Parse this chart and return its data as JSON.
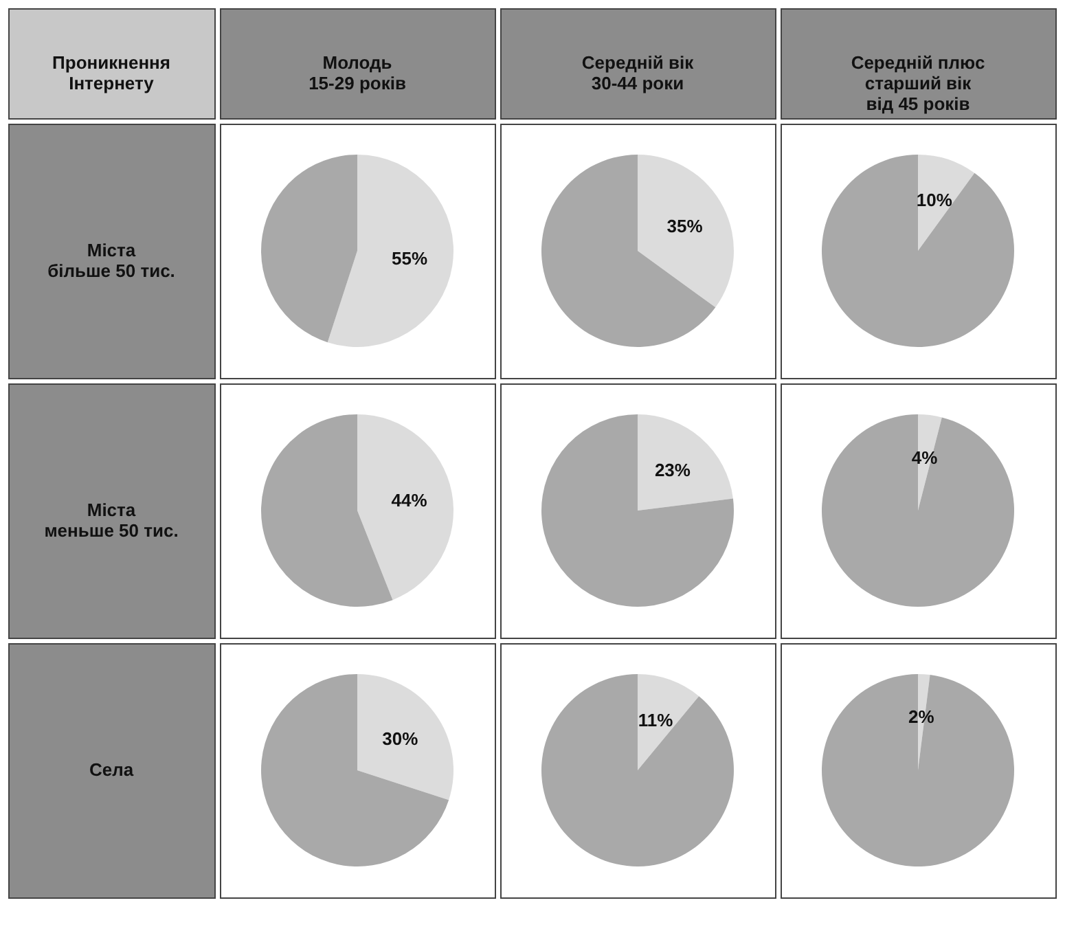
{
  "chart_data": [
    {
      "type": "other",
      "title": "Проникнення\nІнтернету",
      "annotations": [
        "Молодь\n15-29 років",
        "Середній вік\n30-44 роки",
        "Середній плюс\nстарший вік\nвід 45 років",
        "Міста\nбільше 50 тис.",
        "Міста\nменьше 50 тис.",
        "Села"
      ]
    },
    {
      "type": "pie",
      "categories": [
        null,
        null
      ],
      "values": [
        55,
        45
      ],
      "colors": [
        "#dcdcdc",
        "#a9a9a9"
      ],
      "value_labels": [
        "55%",
        null
      ]
    },
    {
      "type": "pie",
      "categories": [
        null,
        null
      ],
      "values": [
        35,
        65
      ],
      "colors": [
        "#dcdcdc",
        "#a9a9a9"
      ],
      "value_labels": [
        "35%",
        null
      ]
    },
    {
      "type": "pie",
      "categories": [
        null,
        null
      ],
      "values": [
        10,
        90
      ],
      "colors": [
        "#dcdcdc",
        "#a9a9a9"
      ],
      "value_labels": [
        "10%",
        null
      ]
    },
    {
      "type": "pie",
      "categories": [
        null,
        null
      ],
      "values": [
        44,
        56
      ],
      "colors": [
        "#dcdcdc",
        "#a9a9a9"
      ],
      "value_labels": [
        "44%",
        null
      ]
    },
    {
      "type": "pie",
      "categories": [
        null,
        null
      ],
      "values": [
        23,
        77
      ],
      "colors": [
        "#dcdcdc",
        "#a9a9a9"
      ],
      "value_labels": [
        "23%",
        null
      ]
    },
    {
      "type": "pie",
      "categories": [
        null,
        null
      ],
      "values": [
        4,
        96
      ],
      "colors": [
        "#dcdcdc",
        "#a9a9a9"
      ],
      "value_labels": [
        "4%",
        null
      ]
    },
    {
      "type": "pie",
      "categories": [
        null,
        null
      ],
      "values": [
        30,
        70
      ],
      "colors": [
        "#dcdcdc",
        "#a9a9a9"
      ],
      "value_labels": [
        "30%",
        null
      ]
    },
    {
      "type": "pie",
      "categories": [
        null,
        null
      ],
      "values": [
        11,
        89
      ],
      "colors": [
        "#dcdcdc",
        "#a9a9a9"
      ],
      "value_labels": [
        "11%",
        null
      ]
    },
    {
      "type": "pie",
      "categories": [
        null,
        null
      ],
      "values": [
        2,
        98
      ],
      "colors": [
        "#dcdcdc",
        "#a9a9a9"
      ],
      "value_labels": [
        "2%",
        null
      ]
    }
  ]
}
